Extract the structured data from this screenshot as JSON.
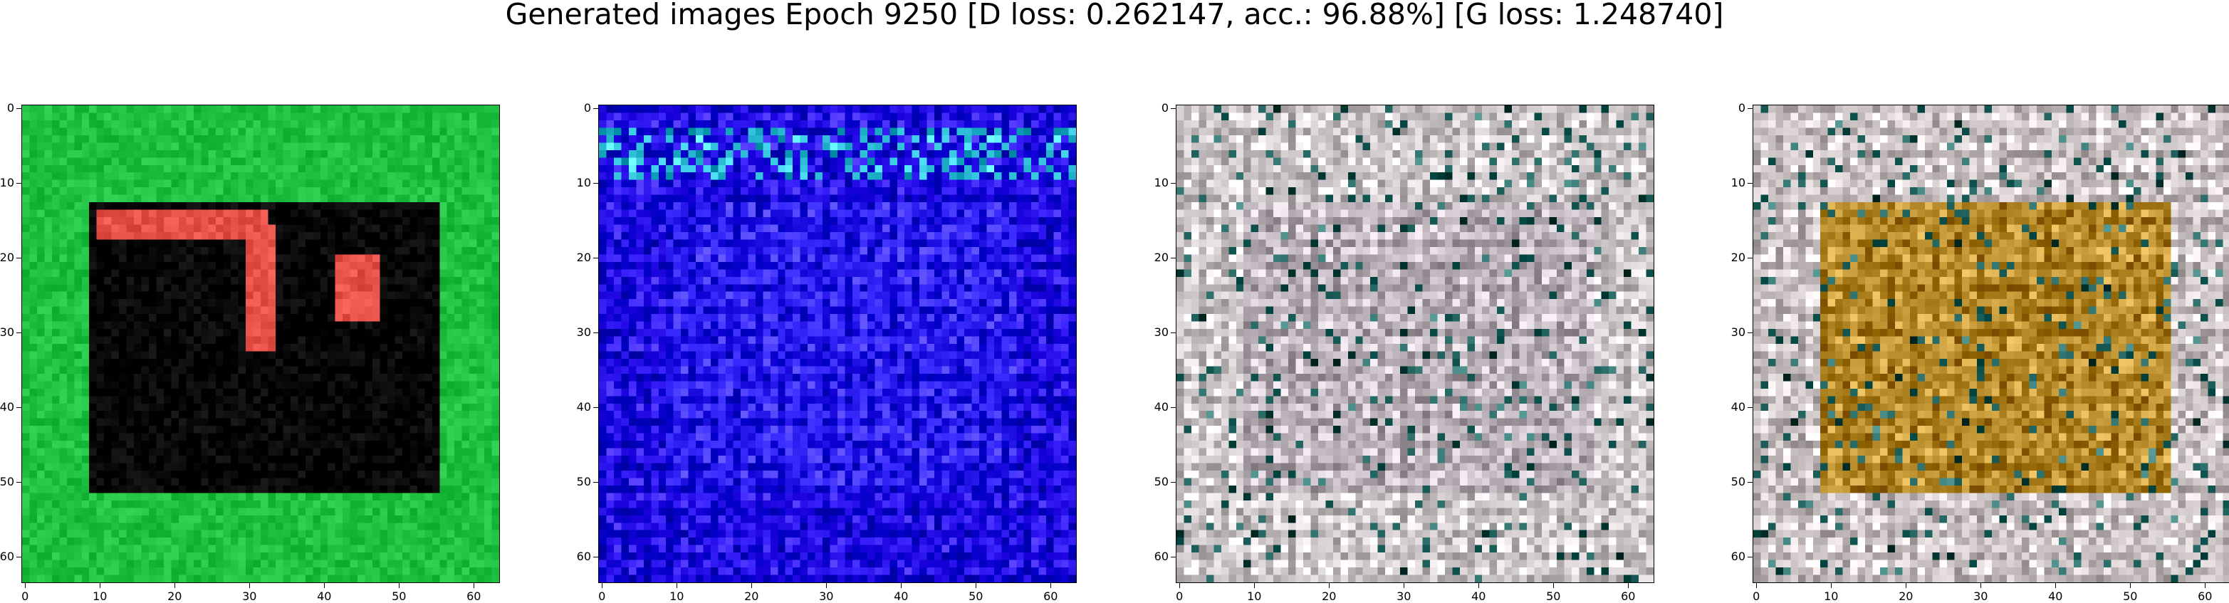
{
  "figure": {
    "title": "Generated images Epoch 9250 [D loss: 0.262147, acc.: 96.88%] [G loss: 1.248740]"
  },
  "axes": {
    "x_ticks": [
      "0",
      "10",
      "20",
      "30",
      "40",
      "50",
      "60"
    ],
    "y_ticks": [
      "0",
      "10",
      "20",
      "30",
      "40",
      "50",
      "60"
    ]
  },
  "images": [
    {
      "name": "green-frame-dark-center",
      "base_color": "#1fbf3f",
      "inner_color": "#050505",
      "accent_color": "#e8504a"
    },
    {
      "name": "blue-noise",
      "base_color": "#2f17f2",
      "inner_color": "#3a2cff",
      "accent_color": "#47d6f0"
    },
    {
      "name": "pale-grid",
      "base_color": "#e4dde0",
      "inner_color": "#cfc5cc",
      "accent_color": "#2c6f6a"
    },
    {
      "name": "pale-grid-orange",
      "base_color": "#e0d8d8",
      "inner_color": "#c79a3a",
      "accent_color": "#2c6f6a"
    }
  ]
}
